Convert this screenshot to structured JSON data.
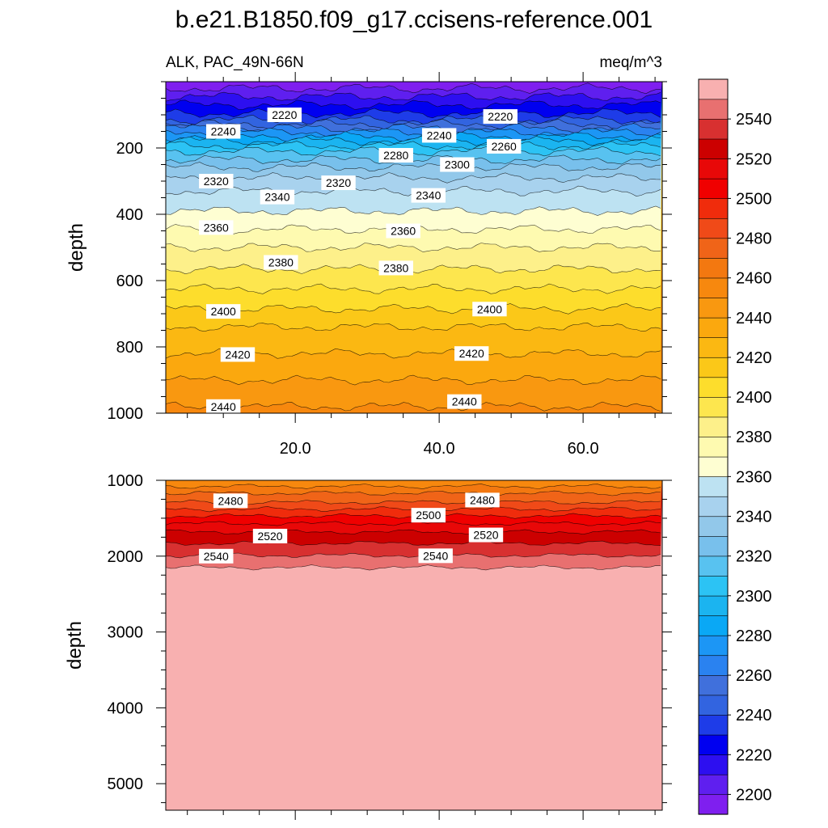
{
  "chart_data": [
    {
      "type": "contour",
      "title": "b.e21.B1850.f09_g17.ccisens-reference.001",
      "left_string": "ALK, PAC_49N-66N",
      "right_string": "meq/m^3",
      "xlabel": "",
      "ylabel": "depth",
      "x_range": [
        2,
        71
      ],
      "x_ticks": [
        20,
        40,
        60
      ],
      "x_tick_labels": [
        "20.0",
        "40.0",
        "60.0"
      ],
      "y_range": [
        0,
        1000
      ],
      "y_reversed": true,
      "y_ticks": [
        200,
        400,
        600,
        800,
        1000
      ],
      "y_tick_labels": [
        "200",
        "400",
        "600",
        "800",
        "1000"
      ],
      "contours": [
        {
          "level": 2200,
          "depth": 20
        },
        {
          "level": 2210,
          "depth": 45
        },
        {
          "level": 2220,
          "depth": 70
        },
        {
          "level": 2230,
          "depth": 95
        },
        {
          "level": 2240,
          "depth": 115
        },
        {
          "level": 2250,
          "depth": 128
        },
        {
          "level": 2260,
          "depth": 140
        },
        {
          "level": 2270,
          "depth": 152
        },
        {
          "level": 2280,
          "depth": 165
        },
        {
          "level": 2290,
          "depth": 178
        },
        {
          "level": 2300,
          "depth": 193
        },
        {
          "level": 2310,
          "depth": 210
        },
        {
          "level": 2320,
          "depth": 235
        },
        {
          "level": 2330,
          "depth": 258
        },
        {
          "level": 2340,
          "depth": 290
        },
        {
          "level": 2350,
          "depth": 330
        },
        {
          "level": 2360,
          "depth": 390
        },
        {
          "level": 2370,
          "depth": 445
        },
        {
          "level": 2380,
          "depth": 500
        },
        {
          "level": 2390,
          "depth": 565
        },
        {
          "level": 2400,
          "depth": 625
        },
        {
          "level": 2410,
          "depth": 685
        },
        {
          "level": 2420,
          "depth": 740
        },
        {
          "level": 2430,
          "depth": 820
        },
        {
          "level": 2440,
          "depth": 900
        },
        {
          "level": 2450,
          "depth": 980
        }
      ],
      "contour_labels": [
        {
          "text": "2220",
          "x": 18.5,
          "y": 100
        },
        {
          "text": "2220",
          "x": 48.5,
          "y": 105
        },
        {
          "text": "2240",
          "x": 10,
          "y": 150
        },
        {
          "text": "2240",
          "x": 40,
          "y": 162
        },
        {
          "text": "2260",
          "x": 49,
          "y": 195
        },
        {
          "text": "2280",
          "x": 34,
          "y": 222
        },
        {
          "text": "2300",
          "x": 42.5,
          "y": 250
        },
        {
          "text": "2320",
          "x": 9,
          "y": 300
        },
        {
          "text": "2320",
          "x": 26,
          "y": 305
        },
        {
          "text": "2340",
          "x": 17.5,
          "y": 348
        },
        {
          "text": "2340",
          "x": 38.5,
          "y": 343
        },
        {
          "text": "2360",
          "x": 9,
          "y": 440
        },
        {
          "text": "2360",
          "x": 35,
          "y": 450
        },
        {
          "text": "2380",
          "x": 18,
          "y": 545
        },
        {
          "text": "2380",
          "x": 34,
          "y": 562
        },
        {
          "text": "2400",
          "x": 10,
          "y": 693
        },
        {
          "text": "2400",
          "x": 47,
          "y": 686
        },
        {
          "text": "2420",
          "x": 12,
          "y": 823
        },
        {
          "text": "2420",
          "x": 44.5,
          "y": 820
        },
        {
          "text": "2440",
          "x": 10,
          "y": 980
        },
        {
          "text": "2440",
          "x": 43.5,
          "y": 965
        }
      ]
    },
    {
      "type": "contour",
      "ylabel": "depth",
      "x_range": [
        2,
        71
      ],
      "y_range": [
        1000,
        5350
      ],
      "y_reversed": true,
      "y_ticks": [
        1000,
        2000,
        3000,
        4000,
        5000
      ],
      "y_tick_labels": [
        "1000",
        "2000",
        "3000",
        "4000",
        "5000"
      ],
      "contours": [
        {
          "level": 2460,
          "depth": 1080
        },
        {
          "level": 2470,
          "depth": 1170
        },
        {
          "level": 2480,
          "depth": 1290
        },
        {
          "level": 2490,
          "depth": 1380
        },
        {
          "level": 2500,
          "depth": 1470
        },
        {
          "level": 2510,
          "depth": 1570
        },
        {
          "level": 2520,
          "depth": 1680
        },
        {
          "level": 2530,
          "depth": 1830
        },
        {
          "level": 2540,
          "depth": 1990
        },
        {
          "level": 2550,
          "depth": 2150
        }
      ],
      "contour_labels": [
        {
          "text": "2480",
          "x": 11,
          "y": 1270
        },
        {
          "text": "2480",
          "x": 46,
          "y": 1260
        },
        {
          "text": "2500",
          "x": 38.5,
          "y": 1460
        },
        {
          "text": "2520",
          "x": 16.5,
          "y": 1735
        },
        {
          "text": "2520",
          "x": 46.5,
          "y": 1720
        },
        {
          "text": "2540",
          "x": 9,
          "y": 2000
        },
        {
          "text": "2540",
          "x": 39.5,
          "y": 1995
        }
      ]
    }
  ],
  "colorbar": {
    "levels": [
      2200,
      2210,
      2220,
      2230,
      2240,
      2250,
      2260,
      2270,
      2280,
      2290,
      2300,
      2310,
      2320,
      2330,
      2340,
      2350,
      2360,
      2370,
      2380,
      2390,
      2400,
      2410,
      2420,
      2430,
      2440,
      2450,
      2460,
      2470,
      2480,
      2490,
      2500,
      2510,
      2520,
      2530,
      2540,
      2550
    ],
    "tick_labels": [
      "2200",
      "2220",
      "2240",
      "2260",
      "2280",
      "2300",
      "2320",
      "2340",
      "2360",
      "2380",
      "2400",
      "2420",
      "2440",
      "2460",
      "2480",
      "2500",
      "2520",
      "2540"
    ],
    "colors": [
      "#7f1fef",
      "#5f1fef",
      "#2d0ff0",
      "#0000f0",
      "#1e3ce8",
      "#3264e0",
      "#4070dc",
      "#2a82f0",
      "#1c96f5",
      "#0aa8f5",
      "#1bb4f0",
      "#2cc3f4",
      "#58c2f0",
      "#78c0ec",
      "#92c8ea",
      "#a8d2ee",
      "#bde2f2",
      "#fefed2",
      "#fefab0",
      "#fdf08a",
      "#fde64e",
      "#fddd2c",
      "#fbc818",
      "#fbb812",
      "#fba80e",
      "#f99810",
      "#f7880e",
      "#f37810",
      "#f06418",
      "#f04a18",
      "#f02c0c",
      "#f00000",
      "#e80808",
      "#cc0000",
      "#d83030",
      "#e87070",
      "#f8b0b0"
    ]
  }
}
